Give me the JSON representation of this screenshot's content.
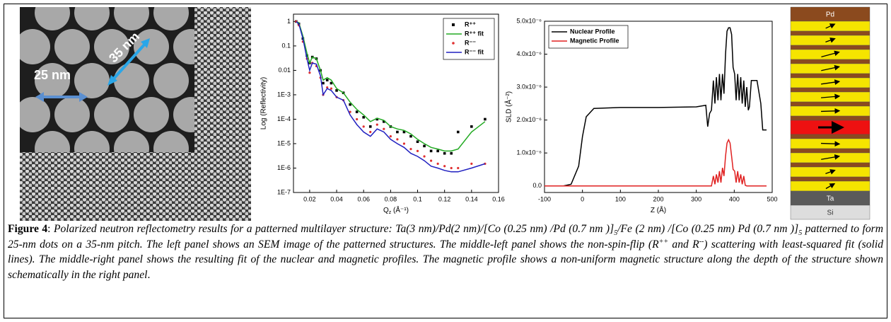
{
  "sem": {
    "labels": [
      "25 nm",
      "35 nm"
    ]
  },
  "chart_data": [
    {
      "type": "line",
      "y_scale": "log",
      "ylabel": "Log (Reflectivity)",
      "xlabel": [
        "Q",
        "z",
        " (Å⁻¹)"
      ],
      "xlim": [
        0.008,
        0.16
      ],
      "ylim": [
        1e-07,
        2
      ],
      "xticks": [
        0.02,
        0.04,
        0.06,
        0.08,
        0.1,
        0.12,
        0.14,
        0.16
      ],
      "yticks": [
        {
          "value": 1e-07,
          "label": "1E-7"
        },
        {
          "value": 1e-06,
          "label": "1E-6"
        },
        {
          "value": 1e-05,
          "label": "1E-5"
        },
        {
          "value": 0.0001,
          "label": "1E-4"
        },
        {
          "value": 0.001,
          "label": "1E-3"
        },
        0.01,
        0.1,
        1
      ],
      "legend": "upper right",
      "x": [
        0.01,
        0.012,
        0.015,
        0.018,
        0.02,
        0.022,
        0.025,
        0.028,
        0.03,
        0.033,
        0.036,
        0.04,
        0.045,
        0.05,
        0.055,
        0.06,
        0.065,
        0.07,
        0.075,
        0.08,
        0.085,
        0.09,
        0.095,
        0.1,
        0.105,
        0.11,
        0.115,
        0.12,
        0.125,
        0.13,
        0.14,
        0.15
      ],
      "series": [
        {
          "name": "R⁺⁺",
          "color": "#000000",
          "mode": "markers",
          "marker": "square",
          "values": [
            1,
            0.8,
            0.2,
            0.04,
            0.02,
            0.035,
            0.03,
            0.01,
            0.003,
            0.004,
            0.003,
            0.0015,
            0.0012,
            0.0004,
            0.0002,
            0.00012,
            5e-05,
            0.0001,
            8e-05,
            5e-05,
            3e-05,
            3e-05,
            2e-05,
            1.2e-05,
            8e-06,
            5e-06,
            5e-06,
            4e-06,
            4e-06,
            3e-05,
            5e-05,
            0.0001
          ]
        },
        {
          "name": "R⁺⁺ fit",
          "color": "#22aa22",
          "mode": "lines",
          "values": [
            1,
            0.9,
            0.25,
            0.05,
            0.02,
            0.035,
            0.03,
            0.01,
            0.004,
            0.005,
            0.004,
            0.0018,
            0.0012,
            0.0005,
            0.00025,
            0.00015,
            8e-05,
            0.00011,
            9e-05,
            5e-05,
            4e-05,
            3.5e-05,
            2.5e-05,
            1.5e-05,
            1e-05,
            7e-06,
            6e-06,
            5e-06,
            5e-06,
            6e-06,
            3e-05,
            8e-05
          ]
        },
        {
          "name": "R⁻⁻",
          "color": "#e03030",
          "mode": "markers",
          "marker": "circle",
          "values": [
            1,
            0.7,
            0.15,
            0.03,
            0.008,
            0.02,
            0.015,
            0.005,
            0.001,
            0.002,
            0.0018,
            0.0008,
            0.0006,
            0.0002,
            0.0001,
            5e-05,
            3e-05,
            6e-05,
            4e-05,
            2e-05,
            1.5e-05,
            1e-05,
            6e-06,
            5e-06,
            3e-06,
            2e-06,
            1.5e-06,
            1.2e-06,
            1e-06,
            1e-06,
            1.5e-06,
            1.5e-06
          ]
        },
        {
          "name": "R⁻⁻ fit",
          "color": "#2020c0",
          "mode": "lines",
          "values": [
            1,
            0.8,
            0.2,
            0.03,
            0.01,
            0.02,
            0.018,
            0.006,
            0.001,
            0.0018,
            0.0015,
            0.0008,
            0.0006,
            0.00015,
            6e-05,
            3e-05,
            2e-05,
            4e-05,
            3e-05,
            1.5e-05,
            1e-05,
            7e-06,
            4e-06,
            3e-06,
            2e-06,
            1.2e-06,
            1e-06,
            8e-07,
            7e-07,
            7e-07,
            1e-06,
            1.5e-06
          ]
        }
      ]
    },
    {
      "type": "line",
      "ylabel": "SLD (Å⁻²)",
      "xlabel": [
        "Z (Å)"
      ],
      "xlim": [
        -100,
        500
      ],
      "ylim": [
        -2e-07,
        5e-06
      ],
      "xticks": [
        -100,
        0,
        100,
        200,
        300,
        400,
        500
      ],
      "yticks": [
        {
          "value": 0,
          "label": "0.0"
        },
        {
          "value": 1e-06,
          "label": "1.0x10⁻⁶"
        },
        {
          "value": 2e-06,
          "label": "2.0x10⁻⁶"
        },
        {
          "value": 3e-06,
          "label": "3.0x10⁻⁶"
        },
        {
          "value": 4e-06,
          "label": "4.0x10⁻⁶"
        },
        {
          "value": 5e-06,
          "label": "5.0x10⁻⁶"
        }
      ],
      "legend": "upper left",
      "series": [
        {
          "name": "Nuclear Profile",
          "color": "#000000",
          "mode": "lines",
          "x": [
            -100,
            -50,
            -30,
            -10,
            0,
            10,
            30,
            100,
            200,
            300,
            325,
            330,
            335,
            340,
            345,
            349,
            353,
            357,
            361,
            365,
            369,
            373,
            377,
            381,
            385,
            389,
            393,
            397,
            401,
            405,
            409,
            413,
            417,
            421,
            425,
            429,
            433,
            437,
            440,
            445,
            460,
            470,
            475,
            485
          ],
          "values": [
            0,
            0,
            5e-08,
            6e-07,
            1.5e-06,
            2.1e-06,
            2.35e-06,
            2.38e-06,
            2.38e-06,
            2.4e-06,
            2.45e-06,
            1.8e-06,
            2.2e-06,
            2.3e-06,
            3.2e-06,
            2.5e-06,
            3.3e-06,
            2.6e-06,
            3.4e-06,
            2.6e-06,
            3.4e-06,
            2.8e-06,
            4e-06,
            4.7e-06,
            4.8e-06,
            4.8e-06,
            4.6e-06,
            3.6e-06,
            3.4e-06,
            2.6e-06,
            3.4e-06,
            2.6e-06,
            3.3e-06,
            2.5e-06,
            3.2e-06,
            2.4e-06,
            3e-06,
            2.3e-06,
            2.4e-06,
            3.2e-06,
            3.2e-06,
            2.5e-06,
            1.7e-06,
            1.7e-06
          ]
        },
        {
          "name": "Magnetic Profile",
          "color": "#e02020",
          "mode": "lines",
          "x": [
            -100,
            340,
            345,
            349,
            353,
            357,
            361,
            365,
            369,
            373,
            377,
            381,
            385,
            389,
            393,
            397,
            401,
            405,
            409,
            413,
            417,
            421,
            425,
            429,
            433,
            485
          ],
          "values": [
            0,
            0,
            3e-07,
            5e-08,
            3.5e-07,
            1e-07,
            4.5e-07,
            1e-07,
            5.5e-07,
            3e-07,
            9e-07,
            1.3e-06,
            1.4e-06,
            1.3e-06,
            9e-07,
            5e-07,
            4.5e-07,
            1e-07,
            4.5e-07,
            1e-07,
            3.5e-07,
            5e-08,
            3e-07,
            2e-08,
            0,
            0
          ]
        }
      ]
    }
  ],
  "schematic": {
    "labels": [
      "Pd",
      "Ta",
      "Si"
    ]
  },
  "caption": {
    "runs": [
      "Figure 4",
      ": ",
      "Polarized neutron reflectometry results for a patterned multilayer structure: Ta(3 nm)/Pd(2 nm)/[Co (0.25 nm) /Pd (0.7 nm )]",
      "5",
      "/Fe (2 nm) /[Co (0.25 nm) Pd (0.7 nm )]",
      "5",
      " patterned to form 25-nm dots on a 35-nm pitch.  The left panel shows an SEM image of the patterned structures.  The middle-left panel shows the non-spin-flip (R",
      "++",
      " and R",
      "--",
      ") scattering with least-squared fit (solid lines).  The middle-right panel shows the resulting fit of the nuclear and magnetic profiles.  The magnetic profile shows a non-uniform magnetic structure along the depth of the structure shown schematically in the right panel",
      "."
    ]
  }
}
